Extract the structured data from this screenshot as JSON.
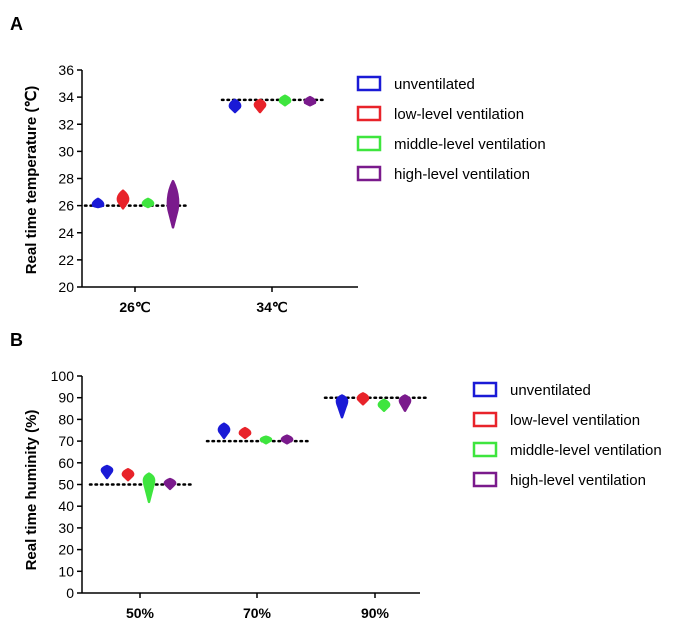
{
  "figure": {
    "series_colors": {
      "unventilated": "#1a1ad6",
      "low-level ventilation": "#e8232a",
      "middle-level ventilation": "#3ee53e",
      "high-level ventilation": "#7a1a8c"
    }
  },
  "chart_data": [
    {
      "panel": "A",
      "type": "violin",
      "ylabel": "Real time temperature (℃)",
      "ylim": [
        20,
        36
      ],
      "yticks": [
        "20",
        "22",
        "24",
        "26",
        "28",
        "30",
        "32",
        "34",
        "36"
      ],
      "categories": [
        "26℃",
        "34℃"
      ],
      "reference_lines": [
        26,
        33.8
      ],
      "legend": [
        "unventilated",
        "low-level ventilation",
        "middle-level ventilation",
        "high-level ventilation"
      ],
      "legend_position": "right",
      "series": [
        {
          "name": "unventilated",
          "color": "#1a1ad6",
          "medians": [
            26.0,
            33.3
          ],
          "ranges": [
            [
              25.9,
              26.5
            ],
            [
              32.9,
              33.8
            ]
          ]
        },
        {
          "name": "low-level ventilation",
          "color": "#e8232a",
          "medians": [
            26.4,
            33.4
          ],
          "ranges": [
            [
              25.8,
              27.1
            ],
            [
              32.9,
              33.8
            ]
          ]
        },
        {
          "name": "middle-level ventilation",
          "color": "#3ee53e",
          "medians": [
            26.1,
            33.7
          ],
          "ranges": [
            [
              25.9,
              26.5
            ],
            [
              33.4,
              34.1
            ]
          ]
        },
        {
          "name": "high-level ventilation",
          "color": "#7a1a8c",
          "medians": [
            26.0,
            33.6
          ],
          "ranges": [
            [
              24.4,
              27.8
            ],
            [
              33.4,
              34.0
            ]
          ]
        }
      ]
    },
    {
      "panel": "B",
      "type": "violin",
      "ylabel": "Real time huminity (%)",
      "ylim": [
        0,
        100
      ],
      "yticks": [
        "0",
        "10",
        "20",
        "30",
        "40",
        "50",
        "60",
        "70",
        "80",
        "90",
        "100"
      ],
      "categories": [
        "50%",
        "70%",
        "90%"
      ],
      "reference_lines": [
        50,
        70,
        90
      ],
      "legend": [
        "unventilated",
        "low-level ventilation",
        "middle-level ventilation",
        "high-level ventilation"
      ],
      "legend_position": "right",
      "series": [
        {
          "name": "unventilated",
          "color": "#1a1ad6",
          "medians": [
            56.5,
            75.0,
            88.5
          ],
          "ranges": [
            [
              53.0,
              58.5
            ],
            [
              71.5,
              78.0
            ],
            [
              81.0,
              91.0
            ]
          ]
        },
        {
          "name": "low-level ventilation",
          "color": "#e8232a",
          "medians": [
            54.5,
            73.5,
            89.5
          ],
          "ranges": [
            [
              52.0,
              57.0
            ],
            [
              71.5,
              76.0
            ],
            [
              87.0,
              92.0
            ]
          ]
        },
        {
          "name": "middle-level ventilation",
          "color": "#3ee53e",
          "medians": [
            52.0,
            70.5,
            86.5
          ],
          "ranges": [
            [
              42.0,
              55.0
            ],
            [
              69.0,
              72.0
            ],
            [
              84.0,
              89.0
            ]
          ]
        },
        {
          "name": "high-level ventilation",
          "color": "#7a1a8c",
          "medians": [
            50.5,
            70.5,
            88.5
          ],
          "ranges": [
            [
              48.0,
              52.5
            ],
            [
              69.0,
              72.5
            ],
            [
              84.0,
              91.0
            ]
          ]
        }
      ]
    }
  ]
}
